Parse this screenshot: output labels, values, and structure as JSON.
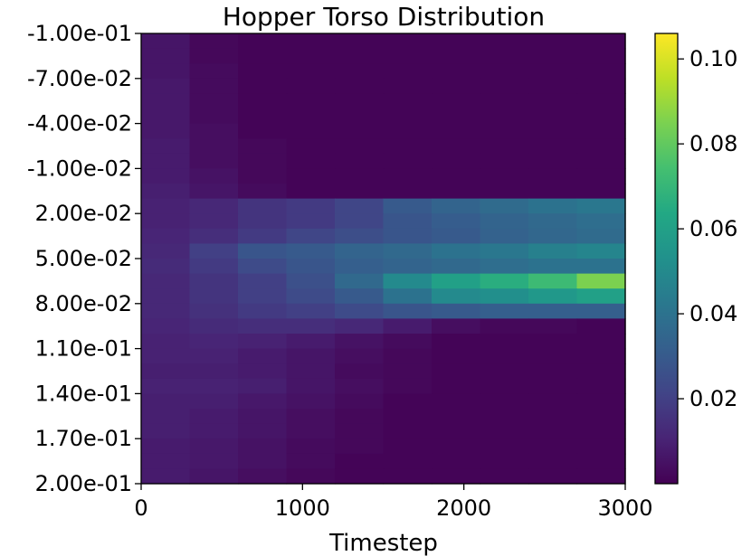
{
  "chart_data": {
    "type": "heatmap",
    "title": "Hopper Torso Distribution",
    "xlabel": "Timestep",
    "ylabel": "",
    "x_range": [
      0,
      3000
    ],
    "x_ticks": [
      "0",
      "1000",
      "2000",
      "3000"
    ],
    "y_range": [
      -0.1,
      0.2
    ],
    "y_inverted": true,
    "y_ticks": [
      "-1.00e-01",
      "-7.00e-02",
      "-4.00e-02",
      "-1.00e-02",
      "2.00e-02",
      "5.00e-02",
      "8.00e-02",
      "1.10e-01",
      "1.40e-01",
      "1.70e-01",
      "2.00e-01"
    ],
    "colormap": "viridis",
    "colorbar": {
      "range": [
        0.0,
        0.106
      ],
      "ticks": [
        "0.02",
        "0.04",
        "0.06",
        "0.08",
        "0.10"
      ],
      "tick_values": [
        0.02,
        0.04,
        0.06,
        0.08,
        0.1
      ]
    },
    "grid": false,
    "x_bins": [
      0,
      300,
      600,
      900,
      1200,
      1500,
      1800,
      2100,
      2400,
      2700,
      3000
    ],
    "y_bins": [
      -0.1,
      -0.09,
      -0.08,
      -0.07,
      -0.06,
      -0.05,
      -0.04,
      -0.03,
      -0.02,
      -0.01,
      0.0,
      0.01,
      0.02,
      0.03,
      0.04,
      0.05,
      0.06,
      0.07,
      0.08,
      0.09,
      0.1,
      0.11,
      0.12,
      0.13,
      0.14,
      0.15,
      0.16,
      0.17,
      0.18,
      0.19,
      0.2
    ],
    "z": [
      [
        0.006,
        0.002,
        0.001,
        0.001,
        0.001,
        0.001,
        0.001,
        0.001,
        0.001,
        0.001,
        0.001
      ],
      [
        0.006,
        0.002,
        0.001,
        0.001,
        0.001,
        0.001,
        0.001,
        0.001,
        0.001,
        0.001,
        0.001
      ],
      [
        0.006,
        0.003,
        0.001,
        0.001,
        0.001,
        0.001,
        0.001,
        0.001,
        0.001,
        0.001,
        0.001
      ],
      [
        0.007,
        0.003,
        0.001,
        0.001,
        0.001,
        0.001,
        0.001,
        0.001,
        0.001,
        0.001,
        0.001
      ],
      [
        0.007,
        0.003,
        0.001,
        0.001,
        0.001,
        0.001,
        0.001,
        0.001,
        0.001,
        0.001,
        0.001
      ],
      [
        0.007,
        0.003,
        0.001,
        0.001,
        0.001,
        0.001,
        0.001,
        0.001,
        0.001,
        0.001,
        0.001
      ],
      [
        0.007,
        0.004,
        0.001,
        0.001,
        0.001,
        0.001,
        0.001,
        0.001,
        0.001,
        0.001,
        0.001
      ],
      [
        0.008,
        0.004,
        0.002,
        0.001,
        0.001,
        0.001,
        0.001,
        0.001,
        0.001,
        0.001,
        0.001
      ],
      [
        0.008,
        0.004,
        0.002,
        0.001,
        0.001,
        0.001,
        0.001,
        0.001,
        0.001,
        0.001,
        0.001
      ],
      [
        0.008,
        0.005,
        0.002,
        0.001,
        0.001,
        0.001,
        0.001,
        0.001,
        0.001,
        0.001,
        0.001
      ],
      [
        0.009,
        0.006,
        0.003,
        0.001,
        0.001,
        0.001,
        0.001,
        0.001,
        0.001,
        0.001,
        0.001
      ],
      [
        0.01,
        0.012,
        0.016,
        0.018,
        0.022,
        0.03,
        0.034,
        0.037,
        0.04,
        0.042,
        0.044
      ],
      [
        0.01,
        0.012,
        0.016,
        0.018,
        0.022,
        0.028,
        0.031,
        0.034,
        0.036,
        0.038,
        0.04
      ],
      [
        0.011,
        0.014,
        0.018,
        0.022,
        0.025,
        0.028,
        0.03,
        0.033,
        0.035,
        0.037,
        0.038
      ],
      [
        0.012,
        0.02,
        0.028,
        0.03,
        0.034,
        0.036,
        0.04,
        0.042,
        0.046,
        0.048,
        0.05
      ],
      [
        0.013,
        0.018,
        0.024,
        0.028,
        0.032,
        0.034,
        0.036,
        0.038,
        0.04,
        0.04,
        0.04
      ],
      [
        0.012,
        0.016,
        0.02,
        0.026,
        0.036,
        0.05,
        0.06,
        0.066,
        0.072,
        0.085,
        0.095
      ],
      [
        0.012,
        0.016,
        0.02,
        0.024,
        0.03,
        0.04,
        0.05,
        0.052,
        0.056,
        0.06,
        0.064
      ],
      [
        0.012,
        0.015,
        0.018,
        0.02,
        0.024,
        0.028,
        0.03,
        0.032,
        0.032,
        0.032,
        0.034
      ],
      [
        0.011,
        0.013,
        0.014,
        0.014,
        0.012,
        0.008,
        0.004,
        0.002,
        0.002,
        0.001,
        0.001
      ],
      [
        0.01,
        0.011,
        0.01,
        0.008,
        0.005,
        0.003,
        0.001,
        0.001,
        0.001,
        0.001,
        0.001
      ],
      [
        0.01,
        0.01,
        0.008,
        0.006,
        0.004,
        0.002,
        0.001,
        0.001,
        0.001,
        0.001,
        0.001
      ],
      [
        0.009,
        0.009,
        0.008,
        0.006,
        0.003,
        0.002,
        0.001,
        0.001,
        0.001,
        0.001,
        0.001
      ],
      [
        0.01,
        0.01,
        0.009,
        0.006,
        0.004,
        0.002,
        0.001,
        0.001,
        0.001,
        0.001,
        0.001
      ],
      [
        0.009,
        0.009,
        0.007,
        0.005,
        0.003,
        0.001,
        0.001,
        0.001,
        0.001,
        0.001,
        0.001
      ],
      [
        0.009,
        0.008,
        0.006,
        0.004,
        0.002,
        0.001,
        0.001,
        0.001,
        0.001,
        0.001,
        0.001
      ],
      [
        0.009,
        0.008,
        0.006,
        0.004,
        0.002,
        0.001,
        0.001,
        0.001,
        0.001,
        0.001,
        0.001
      ],
      [
        0.008,
        0.007,
        0.005,
        0.003,
        0.002,
        0.001,
        0.001,
        0.001,
        0.001,
        0.001,
        0.001
      ],
      [
        0.008,
        0.007,
        0.005,
        0.003,
        0.001,
        0.001,
        0.001,
        0.001,
        0.001,
        0.001,
        0.001
      ],
      [
        0.008,
        0.006,
        0.004,
        0.002,
        0.001,
        0.001,
        0.001,
        0.001,
        0.001,
        0.001,
        0.001
      ]
    ]
  }
}
